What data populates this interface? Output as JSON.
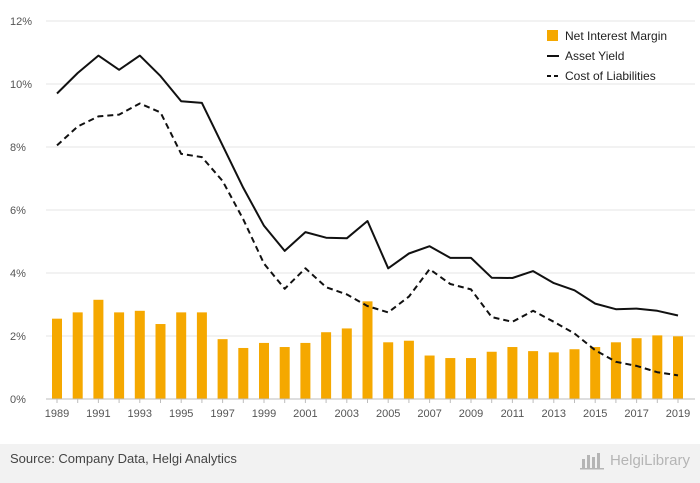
{
  "colors": {
    "bar": "#f5a800",
    "asset_line": "#111111",
    "cost_line": "#111111",
    "grid": "#e6e6e6",
    "axis": "#bdbdbd"
  },
  "footer": {
    "source": "Source: Company Data, Helgi Analytics",
    "brand": "HelgiLibrary",
    "brand_icon": "helgi-logo-icon"
  },
  "chart_data": {
    "type": "bar",
    "x": [
      1989,
      1990,
      1991,
      1992,
      1993,
      1994,
      1995,
      1996,
      1997,
      1998,
      1999,
      2000,
      2001,
      2002,
      2003,
      2004,
      2005,
      2006,
      2007,
      2008,
      2009,
      2010,
      2011,
      2012,
      2013,
      2014,
      2015,
      2016,
      2017,
      2018,
      2019
    ],
    "x_tick_labels": [
      "1989",
      "1991",
      "1993",
      "1995",
      "1997",
      "1999",
      "2001",
      "2003",
      "2005",
      "2007",
      "2009",
      "2011",
      "2013",
      "2015",
      "2017",
      "2019"
    ],
    "y_ticks": [
      0,
      2,
      4,
      6,
      8,
      10,
      12
    ],
    "y_tick_labels": [
      "0%",
      "2%",
      "4%",
      "6%",
      "8%",
      "10%",
      "12%"
    ],
    "ylim": [
      0,
      12
    ],
    "grid": true,
    "legend_position": "top-right",
    "series": [
      {
        "name": "Net Interest Margin",
        "type": "bar",
        "values": [
          2.55,
          2.75,
          3.15,
          2.75,
          2.8,
          2.38,
          2.75,
          2.75,
          1.9,
          1.62,
          1.78,
          1.65,
          1.78,
          2.12,
          2.24,
          3.1,
          1.8,
          1.85,
          1.38,
          1.3,
          1.3,
          1.5,
          1.65,
          1.52,
          1.48,
          1.58,
          1.65,
          1.8,
          1.93,
          2.02,
          1.99
        ]
      },
      {
        "name": "Asset Yield",
        "type": "line",
        "style": "solid",
        "values": [
          9.7,
          10.35,
          10.9,
          10.45,
          10.9,
          10.25,
          9.45,
          9.4,
          8.05,
          6.7,
          5.5,
          4.7,
          5.3,
          5.12,
          5.1,
          5.65,
          4.15,
          4.62,
          4.85,
          4.48,
          4.48,
          3.85,
          3.84,
          4.06,
          3.68,
          3.45,
          3.03,
          2.85,
          2.87,
          2.8,
          2.65
        ]
      },
      {
        "name": "Cost of Liabilities",
        "type": "line",
        "style": "dashed",
        "values": [
          8.05,
          8.65,
          8.97,
          9.03,
          9.38,
          9.1,
          7.78,
          7.68,
          6.92,
          5.7,
          4.3,
          3.5,
          4.15,
          3.55,
          3.32,
          2.95,
          2.75,
          3.25,
          4.12,
          3.65,
          3.48,
          2.6,
          2.45,
          2.8,
          2.45,
          2.08,
          1.55,
          1.18,
          1.05,
          0.85,
          0.75
        ]
      }
    ]
  }
}
